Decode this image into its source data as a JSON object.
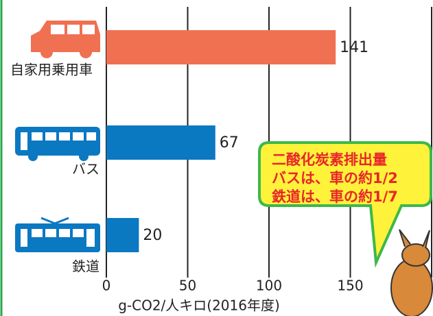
{
  "chart_data": {
    "type": "bar",
    "orientation": "horizontal",
    "categories": [
      "自家用乗用車",
      "バス",
      "鉄道"
    ],
    "values": [
      141,
      67,
      20
    ],
    "colors": [
      "#f07052",
      "#0b78c2",
      "#0b78c2"
    ],
    "xlim": [
      0,
      200
    ],
    "xticks": [
      0,
      50,
      100,
      150
    ],
    "xlabel": "g-CO2/人キロ(2016年度)",
    "grid": true,
    "annotation": [
      "二酸化炭素排出量",
      "バスは、車の約1/2",
      "鉄道は、車の約1/7"
    ]
  }
}
